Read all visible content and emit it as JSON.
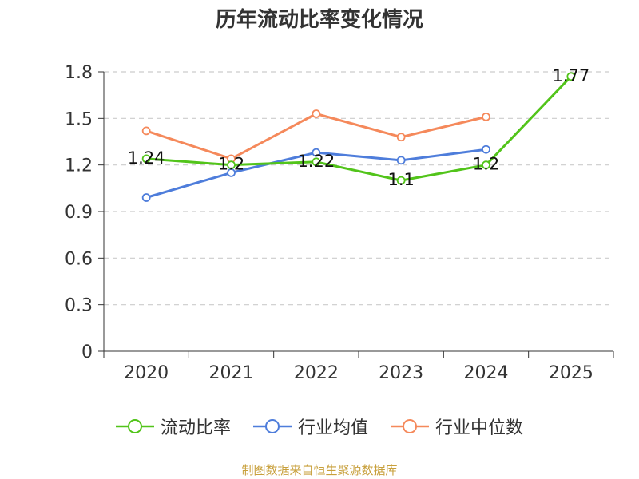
{
  "title": "历年流动比率变化情况",
  "source": "制图数据来自恒生聚源数据库",
  "colors": {
    "current_ratio": "#52c41a",
    "industry_avg": "#4e7ddb",
    "industry_median": "#f5895b",
    "source_text": "#c8a03c",
    "grid": "#cccccc",
    "axis": "#333333"
  },
  "chart_data": {
    "type": "line",
    "title": "历年流动比率变化情况",
    "xlabel": "",
    "ylabel": "",
    "categories": [
      "2020",
      "2021",
      "2022",
      "2023",
      "2024",
      "2025"
    ],
    "ylim": [
      0,
      1.8
    ],
    "yticks": [
      0,
      0.3,
      0.6,
      0.9,
      1.2,
      1.5,
      1.8
    ],
    "ytick_labels": [
      "0",
      "0.3",
      "0.6",
      "0.9",
      "1.2",
      "1.5",
      "1.8"
    ],
    "grid": "horizontal-dashed",
    "legend_position": "bottom-center",
    "series": [
      {
        "key": "current_ratio",
        "name": "流动比率",
        "values": [
          1.24,
          1.2,
          1.22,
          1.1,
          1.2,
          1.77
        ],
        "labels": [
          "1.24",
          "1.2",
          "1.22",
          "1.1",
          "1.2",
          "1.77"
        ],
        "show_labels": true
      },
      {
        "key": "industry_avg",
        "name": "行业均值",
        "values": [
          0.99,
          1.15,
          1.28,
          1.23,
          1.3,
          null
        ],
        "show_labels": false
      },
      {
        "key": "industry_median",
        "name": "行业中位数",
        "values": [
          1.42,
          1.24,
          1.53,
          1.38,
          1.51,
          null
        ],
        "show_labels": false
      }
    ]
  }
}
